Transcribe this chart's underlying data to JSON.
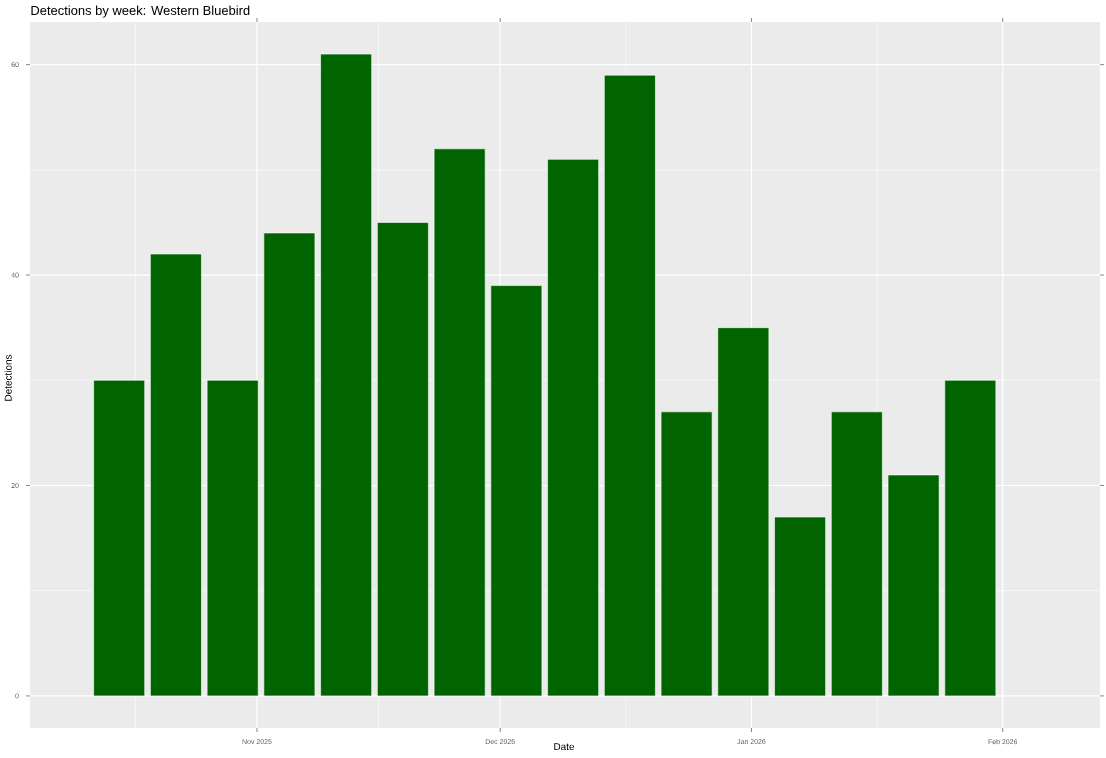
{
  "chart_data": {
    "type": "bar",
    "title": "Detections by week: Western Bluebird",
    "xlabel": "Date",
    "ylabel": "Detections",
    "x": [
      "2025-10-15",
      "2025-10-22",
      "2025-10-29",
      "2025-11-05",
      "2025-11-12",
      "2025-11-19",
      "2025-11-26",
      "2025-12-03",
      "2025-12-10",
      "2025-12-17",
      "2025-12-24",
      "2025-12-31",
      "2026-01-07",
      "2026-01-14",
      "2026-01-21",
      "2026-01-28"
    ],
    "values": [
      30,
      42,
      30,
      44,
      61,
      45,
      52,
      39,
      51,
      59,
      27,
      35,
      17,
      27,
      21,
      30
    ],
    "color": "#006400",
    "xlim": [
      "2025-10-04",
      "2026-02-13"
    ],
    "xticks": [
      {
        "value": "2025-11-01",
        "label": "Nov 2025"
      },
      {
        "value": "2025-12-01",
        "label": "Dec 2025"
      },
      {
        "value": "2026-01-01",
        "label": "Jan 2026"
      },
      {
        "value": "2026-02-01",
        "label": "Feb 2026"
      }
    ],
    "ylim": [
      -3.05,
      64.05
    ],
    "yticks": [
      0,
      20,
      40,
      60
    ],
    "grid": true
  }
}
